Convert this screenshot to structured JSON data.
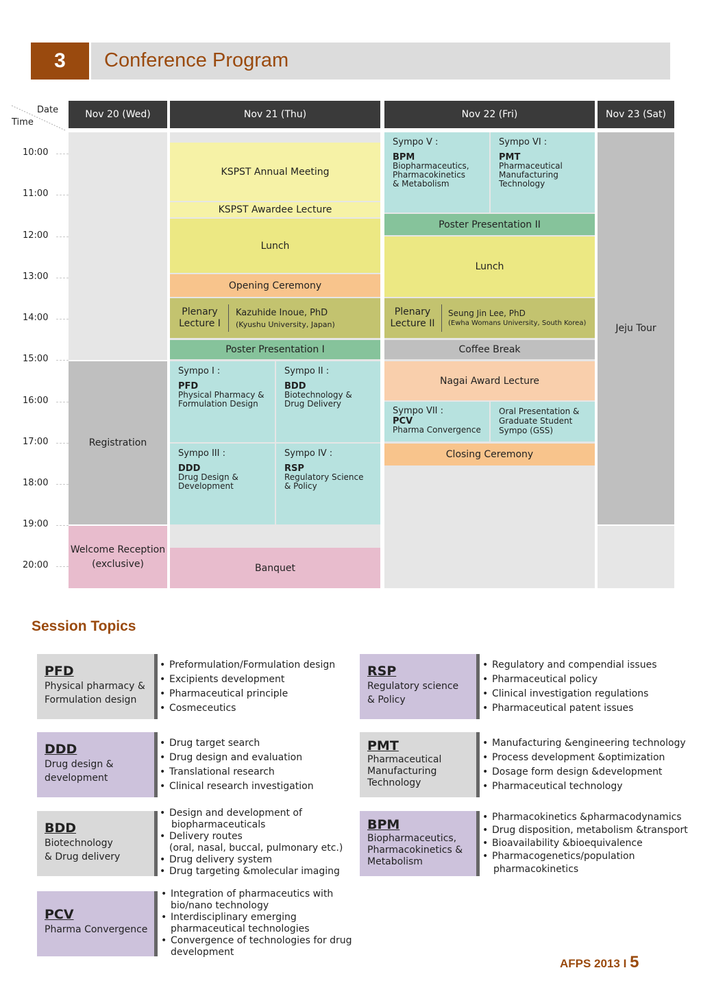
{
  "section": {
    "number": "3",
    "title": "Conference Program"
  },
  "grid": {
    "corner_date": "Date",
    "corner_time": "Time",
    "days": [
      "Nov 20 (Wed)",
      "Nov 21 (Thu)",
      "Nov 22 (Fri)",
      "Nov 23 (Sat)"
    ],
    "times": [
      "10:00",
      "11:00",
      "12:00",
      "13:00",
      "14:00",
      "15:00",
      "16:00",
      "17:00",
      "18:00",
      "19:00",
      "20:00"
    ]
  },
  "nov20": {
    "registration": "Registration",
    "welcome_1": "Welcome Reception",
    "welcome_2": "(exclusive)"
  },
  "nov21": {
    "annual_meeting": "KSPST Annual Meeting",
    "awardee": "KSPST Awardee Lecture",
    "lunch": "Lunch",
    "opening": "Opening Ceremony",
    "plenary_label_1": "Plenary",
    "plenary_label_2": "Lecture I",
    "plenary_speaker": "Kazuhide Inoue, PhD",
    "plenary_affil": "(Kyushu University, Japan)",
    "poster": "Poster Presentation I",
    "sympo1": {
      "title": "Sympo I :",
      "abbr": "PFD",
      "line1": "Physical Pharmacy &",
      "line2": "Formulation Design"
    },
    "sympo2": {
      "title": "Sympo II :",
      "abbr": "BDD",
      "line1": "Biotechnology &",
      "line2": "Drug Delivery"
    },
    "sympo3": {
      "title": "Sympo III :",
      "abbr": "DDD",
      "line1": "Drug Design &",
      "line2": "Development"
    },
    "sympo4": {
      "title": "Sympo IV :",
      "abbr": "RSP",
      "line1": "Regulatory Science",
      "line2": "& Policy"
    },
    "banquet": "Banquet"
  },
  "nov22": {
    "sympo5": {
      "title": "Sympo V :",
      "abbr": "BPM",
      "line1": "Biopharmaceutics,",
      "line2": "Pharmacokinetics",
      "line3": "& Metabolism"
    },
    "sympo6": {
      "title": "Sympo VI :",
      "abbr": "PMT",
      "line1": "Pharmaceutical",
      "line2": "Manufacturing",
      "line3": "Technology"
    },
    "poster": "Poster Presentation II",
    "lunch": "Lunch",
    "plenary_label_1": "Plenary",
    "plenary_label_2": "Lecture II",
    "plenary_speaker": "Seung Jin Lee, PhD",
    "plenary_affil": "(Ewha Womans University, South Korea)",
    "coffee": "Coffee Break",
    "nagai": "Nagai Award Lecture",
    "sympo7": {
      "title": "Sympo VII :",
      "abbr": "PCV",
      "line1": "Pharma Convergence"
    },
    "oral_1": "Oral Presentation &",
    "oral_2": "Graduate Student",
    "oral_3": "Sympo (GSS)",
    "closing": "Closing Ceremony"
  },
  "nov23": {
    "tour": "Jeju Tour"
  },
  "session_topics": {
    "title": "Session Topics",
    "pfd": {
      "abbr": "PFD",
      "desc1": "Physical pharmacy  &",
      "desc2": "Formulation design",
      "items": [
        "Preformulation/Formulation design",
        "Excipients development",
        "Pharmaceutical principle",
        "Cosmeceutics"
      ]
    },
    "rsp": {
      "abbr": "RSP",
      "desc1": "Regulatory science",
      "desc2": "& Policy",
      "items": [
        "Regulatory and compendial issues",
        "Pharmaceutical policy",
        "Clinical investigation regulations",
        "Pharmaceutical patent issues"
      ]
    },
    "ddd": {
      "abbr": "DDD",
      "desc1": "Drug design &",
      "desc2": "development",
      "items": [
        "Drug target search",
        "Drug design and evaluation",
        "Translational research",
        "Clinical research investigation"
      ]
    },
    "pmt": {
      "abbr": "PMT",
      "desc1": "Pharmaceutical",
      "desc2": "Manufacturing",
      "desc3": "Technology",
      "items": [
        "Manufacturing &engineering technology",
        "Process development &optimization",
        "Dosage form design &development",
        "Pharmaceutical technology"
      ]
    },
    "bdd": {
      "abbr": "BDD",
      "desc1": "Biotechnology",
      "desc2": "& Drug delivery",
      "i1a": "Design and development of",
      "i1b": "biopharmaceuticals",
      "i2a": "Delivery routes",
      "i2b": "(oral, nasal, buccal, pulmonary etc.)",
      "i3": "Drug delivery system",
      "i4": "Drug targeting &molecular imaging"
    },
    "bpm": {
      "abbr": "BPM",
      "desc1": "Biopharmaceutics,",
      "desc2": "Pharmacokinetics &",
      "desc3": "Metabolism",
      "i1": "Pharmacokinetics &pharmacodynamics",
      "i2": "Drug disposition, metabolism &transport",
      "i3": "Bioavailability &bioequivalence",
      "i4a": "Pharmacogenetics/population",
      "i4b": "pharmacokinetics"
    },
    "pcv": {
      "abbr": "PCV",
      "desc1": "Pharma Convergence",
      "i1a": "Integration of  pharmaceutics with",
      "i1b": "bio/nano technology",
      "i2a": "Interdisciplinary emerging",
      "i2b": "pharmaceutical technologies",
      "i3a": "Convergence of technologies for drug",
      "i3b": "development"
    }
  },
  "footer": {
    "label": "AFPS 2013 I",
    "page": "5"
  },
  "colors": {
    "accent": "#9a4a0e",
    "header": "#3a3a3a",
    "yellow": "#f6f2a6",
    "lunch": "#ece883",
    "orange": "#f8c48c",
    "olive": "#c3c36f",
    "green": "#86c39b",
    "teal": "#b7e2df",
    "gray": "#bfbfbf",
    "pink": "#e8bccd",
    "lavender": "#cdc2dc"
  }
}
